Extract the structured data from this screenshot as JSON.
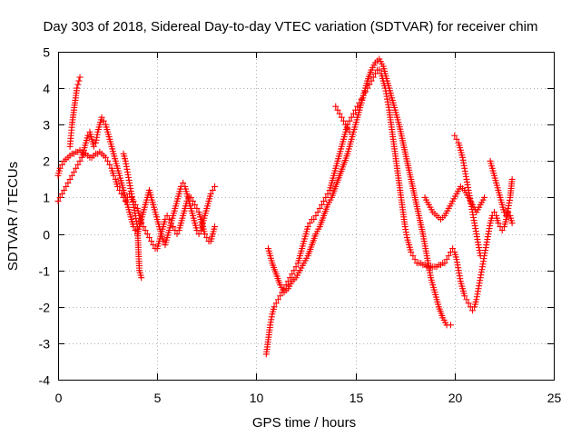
{
  "chart_data": {
    "type": "scatter",
    "title": "Day 303 of 2018, Sidereal Day-to-day VTEC variation (SDTVAR) for receiver chim",
    "xlabel": "GPS time / hours",
    "ylabel": "SDTVAR / TECUs",
    "xlim": [
      0,
      25
    ],
    "ylim": [
      -4,
      5
    ],
    "xticks": [
      0,
      5,
      10,
      15,
      20,
      25
    ],
    "yticks": [
      -4,
      -3,
      -2,
      -1,
      0,
      1,
      2,
      3,
      4,
      5
    ],
    "grid": true,
    "marker": "+",
    "marker_color": "#ff0000",
    "series": [
      {
        "name": "SDTVAR",
        "segments": [
          {
            "x": [
              0.0,
              0.1,
              0.2,
              0.3,
              0.4,
              0.5,
              0.6,
              0.7,
              0.8,
              0.9,
              1.0,
              1.1,
              1.2,
              1.3,
              1.4,
              1.5,
              1.6,
              1.7,
              1.8,
              1.9,
              2.0,
              2.1,
              2.2,
              2.3,
              2.4,
              2.5,
              2.6,
              2.7,
              2.8,
              2.9,
              3.0,
              3.1,
              3.2,
              3.3,
              3.4,
              3.5,
              3.6,
              3.7,
              3.8,
              3.9,
              4.0,
              4.1,
              4.2,
              4.3,
              4.4,
              4.5,
              4.6,
              4.7,
              4.8,
              4.9,
              5.0,
              5.1,
              5.2,
              5.3,
              5.4,
              5.5,
              5.6,
              5.7,
              5.8,
              5.9,
              6.0,
              6.1,
              6.2,
              6.3,
              6.4,
              6.5,
              6.6,
              6.7,
              6.8,
              6.9,
              7.0,
              7.1,
              7.2,
              7.3,
              7.4,
              7.5,
              7.6,
              7.7,
              7.8,
              7.9
            ],
            "y": [
              1.6,
              1.8,
              1.9,
              2.0,
              2.05,
              2.1,
              2.15,
              2.2,
              2.2,
              2.25,
              2.25,
              2.3,
              2.25,
              2.2,
              2.2,
              2.15,
              2.1,
              2.1,
              2.15,
              2.2,
              2.2,
              2.25,
              2.2,
              2.15,
              2.1,
              2.0,
              1.9,
              1.8,
              1.6,
              1.5,
              1.3,
              1.2,
              1.1,
              1.0,
              0.9,
              1.0,
              1.1,
              1.0,
              0.9,
              0.8,
              0.7,
              0.5,
              0.3,
              0.2,
              0.1,
              0.0,
              -0.1,
              -0.2,
              -0.3,
              -0.4,
              -0.4,
              -0.2,
              0.0,
              0.2,
              0.4,
              0.5,
              0.4,
              0.3,
              0.2,
              0.1,
              0.0,
              0.1,
              0.3,
              0.5,
              0.7,
              0.9,
              1.0,
              1.0,
              0.9,
              0.8,
              0.7,
              0.6,
              0.4,
              0.2,
              0.0,
              -0.1,
              -0.2,
              -0.2,
              0.0,
              0.2
            ]
          },
          {
            "x": [
              0.0,
              0.1,
              0.2,
              0.3,
              0.4,
              0.5,
              0.6,
              0.7,
              0.8,
              0.9,
              1.0,
              1.1,
              1.2,
              1.3,
              1.4,
              1.5,
              1.6,
              1.7,
              1.8,
              1.9,
              2.0,
              2.1,
              2.2,
              2.3,
              2.4,
              2.5,
              2.6,
              2.7,
              2.8,
              2.9,
              3.0,
              3.1,
              3.2,
              3.3,
              3.4,
              3.5,
              3.6,
              3.7,
              3.8,
              3.9,
              4.0,
              4.1,
              4.2,
              4.3,
              4.4,
              4.5,
              4.6,
              4.7,
              4.8,
              4.9,
              5.0,
              5.1,
              5.2,
              5.3,
              5.4,
              5.5,
              5.6,
              5.7,
              5.8,
              5.9,
              6.0,
              6.1,
              6.2,
              6.3,
              6.4,
              6.5,
              6.6,
              6.7,
              6.8,
              6.9,
              7.0,
              7.1,
              7.2,
              7.3,
              7.4,
              7.5,
              7.6,
              7.7,
              7.8,
              7.9
            ],
            "y": [
              0.9,
              1.0,
              1.1,
              1.2,
              1.3,
              1.4,
              1.5,
              1.6,
              1.7,
              1.8,
              1.9,
              2.0,
              2.1,
              2.3,
              2.5,
              2.7,
              2.8,
              2.6,
              2.4,
              2.5,
              2.8,
              3.0,
              3.2,
              3.1,
              3.0,
              2.8,
              2.6,
              2.4,
              2.2,
              2.0,
              1.8,
              1.6,
              1.4,
              1.2,
              1.0,
              0.8,
              0.6,
              0.4,
              0.2,
              0.1,
              0.0,
              0.2,
              0.4,
              0.6,
              0.8,
              1.0,
              1.2,
              1.0,
              0.8,
              0.6,
              0.4,
              0.2,
              0.0,
              -0.2,
              -0.3,
              -0.1,
              0.1,
              0.3,
              0.5,
              0.7,
              0.9,
              1.1,
              1.3,
              1.4,
              1.3,
              1.1,
              0.9,
              0.7,
              0.5,
              0.3,
              0.1,
              0.0,
              0.1,
              0.3,
              0.5,
              0.7,
              0.9,
              1.1,
              1.2,
              1.3
            ]
          },
          {
            "x": [
              0.6,
              0.65,
              0.7,
              0.75,
              0.8,
              0.85,
              0.9,
              0.95,
              1.0,
              1.05,
              1.1
            ],
            "y": [
              2.4,
              2.7,
              3.0,
              3.2,
              3.4,
              3.6,
              3.8,
              4.0,
              4.1,
              4.2,
              4.3
            ]
          },
          {
            "x": [
              3.3,
              3.4,
              3.5,
              3.6,
              3.7,
              3.8,
              3.9,
              4.0,
              4.1,
              4.2
            ],
            "y": [
              2.2,
              2.0,
              1.7,
              1.4,
              1.1,
              0.8,
              0.5,
              0.2,
              -1.0,
              -1.2
            ]
          },
          {
            "x": [
              10.5,
              10.6,
              10.7,
              10.8,
              10.9,
              11.0,
              11.1,
              11.2,
              11.3,
              11.4,
              11.5,
              11.6,
              11.7,
              11.8,
              11.9,
              12.0,
              12.1,
              12.2,
              12.3,
              12.4,
              12.5,
              12.6,
              12.7,
              12.8,
              12.9,
              13.0,
              13.1,
              13.2,
              13.3,
              13.4,
              13.5,
              13.6,
              13.7,
              13.8,
              13.9,
              14.0,
              14.1,
              14.2,
              14.3,
              14.4,
              14.5,
              14.6,
              14.7,
              14.8,
              14.9,
              15.0,
              15.1,
              15.2,
              15.3,
              15.4,
              15.5,
              15.6,
              15.7,
              15.8,
              15.9,
              16.0,
              16.1,
              16.2,
              16.3,
              16.4,
              16.5,
              16.6,
              16.7,
              16.8,
              16.9,
              17.0,
              17.1,
              17.2,
              17.3,
              17.4,
              17.5,
              17.6,
              17.7,
              17.8,
              17.9,
              18.0,
              18.1,
              18.2,
              18.3,
              18.4,
              18.5,
              18.6,
              18.7,
              18.8,
              18.9,
              19.0,
              19.1,
              19.2,
              19.3,
              19.4,
              19.5,
              19.6,
              19.7,
              19.8,
              19.9,
              20.0,
              20.1,
              20.2,
              20.3,
              20.4,
              20.5,
              20.6,
              20.7,
              20.8,
              20.9,
              21.0,
              21.1,
              21.2,
              21.3,
              21.4,
              21.5,
              21.6,
              21.7,
              21.8,
              21.9,
              22.0,
              22.1,
              22.2,
              22.3,
              22.4,
              22.5,
              22.6,
              22.7,
              22.8,
              22.9
            ],
            "y": [
              -3.3,
              -2.9,
              -2.5,
              -2.2,
              -2.0,
              -1.9,
              -1.8,
              -1.7,
              -1.6,
              -1.5,
              -1.4,
              -1.3,
              -1.2,
              -1.1,
              -1.0,
              -0.9,
              -0.8,
              -0.6,
              -0.4,
              -0.2,
              0.0,
              0.2,
              0.3,
              0.4,
              0.4,
              0.5,
              0.6,
              0.7,
              0.8,
              0.9,
              1.0,
              1.1,
              1.2,
              1.4,
              1.6,
              1.8,
              2.0,
              2.2,
              2.4,
              2.6,
              2.8,
              3.0,
              3.1,
              3.2,
              3.3,
              3.4,
              3.5,
              3.6,
              3.7,
              3.8,
              3.9,
              4.0,
              4.1,
              4.2,
              4.3,
              4.4,
              4.5,
              4.5,
              4.4,
              4.2,
              4.0,
              3.7,
              3.4,
              3.0,
              2.6,
              2.2,
              1.8,
              1.4,
              1.0,
              0.6,
              0.2,
              -0.1,
              -0.3,
              -0.5,
              -0.6,
              -0.7,
              -0.8,
              -0.8,
              -0.8,
              -0.85,
              -0.85,
              -0.9,
              -0.9,
              -0.9,
              -0.9,
              -0.9,
              -0.9,
              -0.85,
              -0.85,
              -0.8,
              -0.8,
              -0.7,
              -0.6,
              -0.5,
              -0.4,
              -0.5,
              -0.7,
              -1.0,
              -1.3,
              -1.5,
              -1.7,
              -1.8,
              -1.9,
              -2.0,
              -2.1,
              -2.0,
              -1.8,
              -1.5,
              -1.2,
              -0.9,
              -0.6,
              -0.3,
              0.0,
              0.3,
              0.5,
              0.6,
              0.5,
              0.3,
              0.2,
              0.1,
              0.2,
              0.4,
              0.6,
              0.5,
              0.3
            ]
          },
          {
            "x": [
              10.6,
              10.8,
              11.0,
              11.2,
              11.4,
              11.6,
              11.8,
              12.0,
              12.2,
              12.4,
              12.6,
              12.8,
              13.0,
              13.2,
              13.4,
              13.6,
              13.8,
              14.0,
              14.2,
              14.4,
              14.6,
              14.8,
              15.0,
              15.2,
              15.4,
              15.6,
              15.8,
              16.0,
              16.2,
              16.4,
              16.6,
              16.8,
              17.0,
              17.2,
              17.4,
              17.6,
              17.8,
              18.0,
              18.2,
              18.4,
              18.6,
              18.8,
              19.0,
              19.2,
              19.4,
              19.6,
              19.8
            ],
            "y": [
              -0.4,
              -0.8,
              -1.1,
              -1.4,
              -1.6,
              -1.5,
              -1.3,
              -1.2,
              -1.0,
              -0.8,
              -0.6,
              -0.3,
              0.0,
              0.2,
              0.5,
              0.8,
              1.0,
              1.3,
              1.6,
              1.9,
              2.2,
              2.6,
              3.0,
              3.4,
              3.8,
              4.2,
              4.5,
              4.7,
              4.8,
              4.6,
              4.2,
              3.8,
              3.4,
              3.0,
              2.5,
              2.0,
              1.5,
              1.0,
              0.5,
              0.0,
              -0.6,
              -1.2,
              -1.6,
              -2.0,
              -2.3,
              -2.5,
              -2.5
            ]
          },
          {
            "x": [
              14.0,
              14.1,
              14.2,
              14.3,
              14.4,
              14.5,
              14.6,
              14.7
            ],
            "y": [
              3.5,
              3.4,
              3.3,
              3.2,
              3.1,
              3.0,
              2.9,
              2.8
            ]
          },
          {
            "x": [
              18.5,
              18.7,
              18.9,
              19.1,
              19.3,
              19.5,
              19.7,
              19.9,
              20.1,
              20.3,
              20.5,
              20.7,
              20.9,
              21.1,
              21.3,
              21.5
            ],
            "y": [
              1.0,
              0.8,
              0.6,
              0.5,
              0.4,
              0.5,
              0.7,
              0.9,
              1.1,
              1.3,
              1.2,
              1.0,
              0.8,
              0.6,
              0.8,
              1.0
            ]
          },
          {
            "x": [
              20.0,
              20.1,
              20.2,
              20.3,
              20.4,
              20.5,
              20.6,
              20.7,
              20.8,
              20.9,
              21.0,
              21.1,
              21.2,
              21.3
            ],
            "y": [
              2.7,
              2.6,
              2.5,
              2.3,
              2.1,
              1.8,
              1.5,
              1.2,
              0.9,
              0.6,
              0.3,
              0.0,
              -0.3,
              -0.6
            ]
          },
          {
            "x": [
              21.8,
              21.9,
              22.0,
              22.1,
              22.2,
              22.3,
              22.4,
              22.5,
              22.6,
              22.7,
              22.8,
              22.9
            ],
            "y": [
              2.0,
              1.8,
              1.6,
              1.4,
              1.2,
              1.0,
              0.8,
              0.6,
              0.5,
              0.7,
              1.0,
              1.5
            ]
          }
        ]
      }
    ]
  }
}
